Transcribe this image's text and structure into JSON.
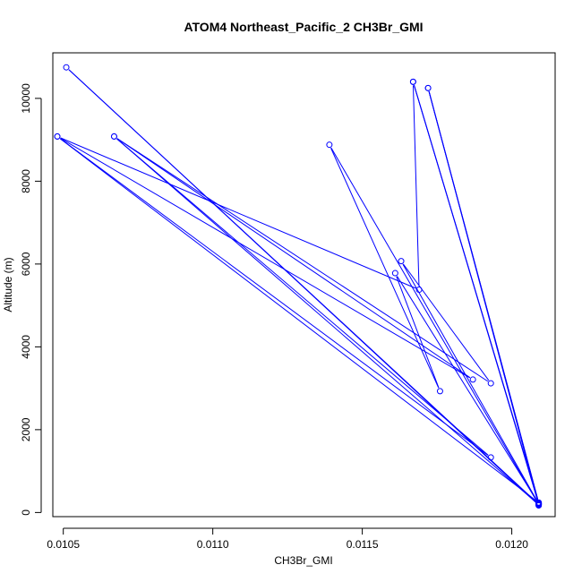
{
  "chart_data": {
    "type": "line",
    "title": "ATOM4 Northeast_Pacific_2 CH3Br_GMI",
    "xlabel": "CH3Br_GMI",
    "ylabel": "Altitude (m)",
    "xlim": [
      0.010465,
      0.012145
    ],
    "ylim": [
      -100,
      11100
    ],
    "xticks": [
      0.0105,
      0.011,
      0.0115,
      0.012
    ],
    "xtick_labels": [
      "0.0105",
      "0.0110",
      "0.0115",
      "0.0120"
    ],
    "yticks": [
      0,
      2000,
      4000,
      6000,
      8000,
      10000
    ],
    "ytick_labels": [
      "0",
      "2000",
      "4000",
      "6000",
      "8000",
      "10000"
    ],
    "grid": false,
    "legend": "none",
    "series": [
      {
        "color": "#0000ff",
        "marker": "open-circle",
        "points": [
          {
            "x": 0.01209,
            "y": 180
          },
          {
            "x": 0.01051,
            "y": 10750
          },
          {
            "x": 0.01209,
            "y": 200
          },
          {
            "x": 0.01167,
            "y": 10400
          },
          {
            "x": 0.01209,
            "y": 220
          },
          {
            "x": 0.01172,
            "y": 10250
          },
          {
            "x": 0.01209,
            "y": 240
          },
          {
            "x": 0.01048,
            "y": 9080
          },
          {
            "x": 0.01193,
            "y": 1330
          },
          {
            "x": 0.01067,
            "y": 9080
          },
          {
            "x": 0.01209,
            "y": 190
          },
          {
            "x": 0.01139,
            "y": 8880
          },
          {
            "x": 0.01176,
            "y": 2930
          },
          {
            "x": 0.01161,
            "y": 5780
          },
          {
            "x": 0.01209,
            "y": 210
          },
          {
            "x": 0.01163,
            "y": 6070
          },
          {
            "x": 0.01193,
            "y": 3120
          },
          {
            "x": 0.01067,
            "y": 9080
          },
          {
            "x": 0.01187,
            "y": 3210
          },
          {
            "x": 0.01048,
            "y": 9080
          },
          {
            "x": 0.01169,
            "y": 5380
          },
          {
            "x": 0.01167,
            "y": 10400
          },
          {
            "x": 0.01209,
            "y": 230
          },
          {
            "x": 0.01172,
            "y": 10250
          },
          {
            "x": 0.01209,
            "y": 170
          }
        ]
      }
    ]
  }
}
